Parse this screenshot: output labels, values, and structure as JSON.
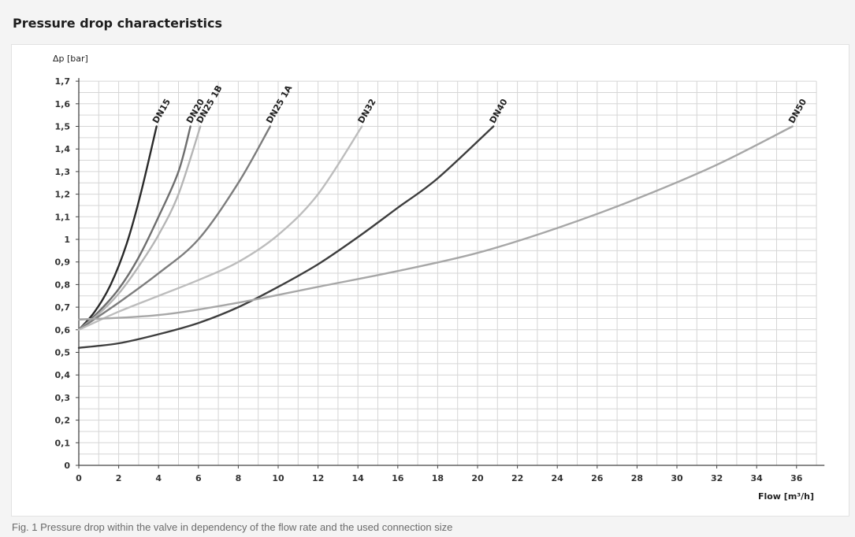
{
  "page": {
    "title": "Pressure drop characteristics",
    "caption": "Fig. 1 Pressure drop within the valve in dependency of the flow rate and the used connection size"
  },
  "chart_data": {
    "type": "line",
    "title": "Pressure drop characteristics",
    "ylabel": "Δp [bar]",
    "xlabel": "Flow [m³/h]",
    "xlim": [
      0,
      37
    ],
    "ylim": [
      0,
      1.7
    ],
    "x_ticks": [
      0,
      2,
      4,
      6,
      8,
      10,
      12,
      14,
      16,
      18,
      20,
      22,
      24,
      26,
      28,
      30,
      32,
      34,
      36
    ],
    "y_ticks": [
      "0",
      "0,1",
      "0,2",
      "0,3",
      "0,4",
      "0,5",
      "0,6",
      "0,7",
      "0,8",
      "0,9",
      "1",
      "1,1",
      "1,2",
      "1,3",
      "1,4",
      "1,5",
      "1,6",
      "1,7"
    ],
    "grid": true,
    "colors": {
      "grid": "#d6d6d6",
      "axis": "#444444"
    },
    "series": [
      {
        "name": "DN15",
        "color": "#2a2a2a",
        "points": [
          [
            0,
            0.6
          ],
          [
            0.8,
            0.68
          ],
          [
            1.6,
            0.8
          ],
          [
            2.4,
            0.98
          ],
          [
            3.1,
            1.2
          ],
          [
            3.9,
            1.5
          ]
        ]
      },
      {
        "name": "DN20",
        "color": "#6e6e6e",
        "points": [
          [
            0,
            0.6
          ],
          [
            1,
            0.68
          ],
          [
            2,
            0.78
          ],
          [
            3,
            0.92
          ],
          [
            4,
            1.1
          ],
          [
            5,
            1.3
          ],
          [
            5.6,
            1.5
          ]
        ]
      },
      {
        "name": "DN25 1B",
        "color": "#b5b5b5",
        "points": [
          [
            0,
            0.6
          ],
          [
            1,
            0.67
          ],
          [
            2,
            0.76
          ],
          [
            3,
            0.88
          ],
          [
            4,
            1.02
          ],
          [
            5,
            1.2
          ],
          [
            6.1,
            1.5
          ]
        ]
      },
      {
        "name": "DN25 1A",
        "color": "#7d7d7d",
        "points": [
          [
            0,
            0.6
          ],
          [
            2,
            0.72
          ],
          [
            4,
            0.85
          ],
          [
            6,
            1.0
          ],
          [
            8,
            1.25
          ],
          [
            9.6,
            1.5
          ]
        ]
      },
      {
        "name": "DN32",
        "color": "#bdbdbd",
        "points": [
          [
            0,
            0.6
          ],
          [
            2,
            0.68
          ],
          [
            4,
            0.75
          ],
          [
            6,
            0.82
          ],
          [
            8,
            0.9
          ],
          [
            10,
            1.02
          ],
          [
            12,
            1.2
          ],
          [
            14.2,
            1.5
          ]
        ]
      },
      {
        "name": "DN40",
        "color": "#3e3e3e",
        "points": [
          [
            0,
            0.52
          ],
          [
            2,
            0.54
          ],
          [
            4,
            0.58
          ],
          [
            6,
            0.63
          ],
          [
            8,
            0.7
          ],
          [
            10,
            0.79
          ],
          [
            12,
            0.89
          ],
          [
            14,
            1.01
          ],
          [
            16,
            1.14
          ],
          [
            18,
            1.27
          ],
          [
            20.8,
            1.5
          ]
        ]
      },
      {
        "name": "DN50",
        "color": "#a7a7a7",
        "points": [
          [
            0,
            0.645
          ],
          [
            4,
            0.665
          ],
          [
            8,
            0.72
          ],
          [
            12,
            0.79
          ],
          [
            16,
            0.86
          ],
          [
            20,
            0.94
          ],
          [
            24,
            1.05
          ],
          [
            28,
            1.18
          ],
          [
            32,
            1.33
          ],
          [
            35.8,
            1.5
          ]
        ]
      }
    ]
  }
}
